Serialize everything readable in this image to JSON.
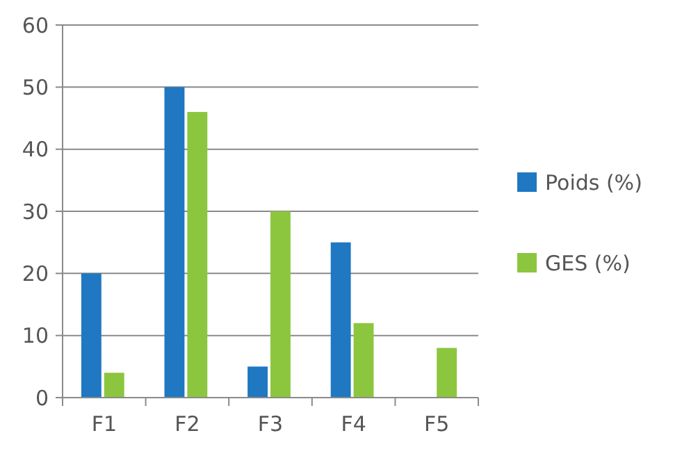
{
  "chart_data": {
    "type": "bar",
    "categories": [
      "F1",
      "F2",
      "F3",
      "F4",
      "F5"
    ],
    "series": [
      {
        "name": "Poids (%)",
        "color": "#1f78c1",
        "values": [
          20,
          50,
          5,
          25,
          0
        ]
      },
      {
        "name": "GES (%)",
        "color": "#8cc63f",
        "values": [
          4,
          46,
          30,
          12,
          8
        ]
      }
    ],
    "ylim": [
      0,
      60
    ],
    "yticks": [
      0,
      10,
      20,
      30,
      40,
      50,
      60
    ],
    "grid": "y",
    "legend": "right"
  }
}
